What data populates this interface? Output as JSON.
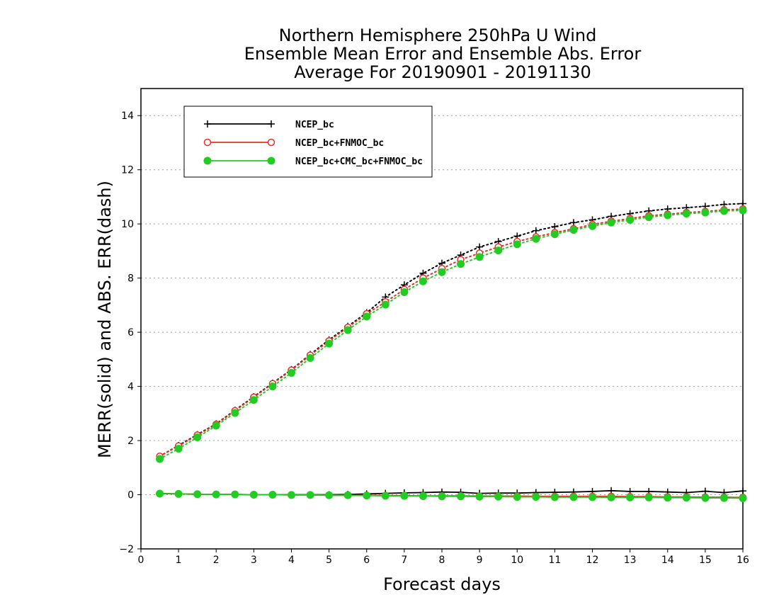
{
  "chart_data": {
    "type": "line",
    "title_lines": [
      "Northern Hemisphere 250hPa U Wind",
      "Ensemble Mean Error and Ensemble Abs. Error",
      "Average For 20190901 - 20191130"
    ],
    "xlabel": "Forecast days",
    "ylabel": "MERR(solid) and ABS. ERR(dash)",
    "xlim": [
      0,
      16
    ],
    "ylim": [
      -2,
      15
    ],
    "xticks": [
      0,
      1,
      2,
      3,
      4,
      5,
      6,
      7,
      8,
      9,
      10,
      11,
      12,
      13,
      14,
      15,
      16
    ],
    "yticks": [
      -2,
      0,
      2,
      4,
      6,
      8,
      10,
      12,
      14
    ],
    "grid": true,
    "legend_position": "top-left",
    "x": [
      0.5,
      1,
      1.5,
      2,
      2.5,
      3,
      3.5,
      4,
      4.5,
      5,
      5.5,
      6,
      6.5,
      7,
      7.5,
      8,
      8.5,
      9,
      9.5,
      10,
      10.5,
      11,
      11.5,
      12,
      12.5,
      13,
      13.5,
      14,
      14.5,
      15,
      15.5,
      16
    ],
    "series": [
      {
        "name": "NCEP_bc",
        "color": "#000000",
        "marker": "plus",
        "merr": [
          0.05,
          0.03,
          0.02,
          0.01,
          0.01,
          0.0,
          0.0,
          0.0,
          0.0,
          0.0,
          0.01,
          0.03,
          0.05,
          0.07,
          0.08,
          0.1,
          0.09,
          0.05,
          0.06,
          0.06,
          0.08,
          0.09,
          0.1,
          0.12,
          0.15,
          0.12,
          0.12,
          0.1,
          0.08,
          0.13,
          0.08,
          0.14
        ],
        "abs": [
          1.42,
          1.82,
          2.22,
          2.62,
          3.12,
          3.62,
          4.12,
          4.62,
          5.18,
          5.72,
          6.22,
          6.72,
          7.3,
          7.75,
          8.18,
          8.55,
          8.85,
          9.15,
          9.35,
          9.55,
          9.75,
          9.9,
          10.05,
          10.15,
          10.28,
          10.38,
          10.48,
          10.55,
          10.6,
          10.65,
          10.72,
          10.75
        ]
      },
      {
        "name": "NCEP_bc+FNMOC_bc",
        "color": "#e8312b",
        "marker": "open-circle",
        "merr": [
          0.04,
          0.03,
          0.02,
          0.01,
          0.01,
          0.0,
          0.0,
          -0.01,
          -0.01,
          -0.02,
          -0.02,
          -0.02,
          -0.03,
          -0.03,
          -0.04,
          -0.04,
          -0.04,
          -0.05,
          -0.05,
          -0.05,
          -0.06,
          -0.06,
          -0.06,
          -0.06,
          -0.06,
          -0.07,
          -0.07,
          -0.08,
          -0.08,
          -0.09,
          -0.09,
          -0.1
        ],
        "abs": [
          1.42,
          1.8,
          2.2,
          2.6,
          3.1,
          3.6,
          4.1,
          4.6,
          5.15,
          5.68,
          6.18,
          6.68,
          7.12,
          7.58,
          8.0,
          8.35,
          8.68,
          8.92,
          9.15,
          9.35,
          9.52,
          9.68,
          9.82,
          9.98,
          10.1,
          10.2,
          10.3,
          10.36,
          10.42,
          10.46,
          10.52,
          10.55
        ]
      },
      {
        "name": "NCEP_bc+CMC_bc+FNMOC_bc",
        "color": "#22cc22",
        "marker": "filled-circle",
        "merr": [
          0.04,
          0.03,
          0.02,
          0.01,
          0.01,
          0.0,
          0.0,
          -0.01,
          -0.01,
          -0.02,
          -0.02,
          -0.03,
          -0.04,
          -0.04,
          -0.05,
          -0.06,
          -0.06,
          -0.07,
          -0.07,
          -0.08,
          -0.08,
          -0.09,
          -0.09,
          -0.09,
          -0.1,
          -0.1,
          -0.1,
          -0.11,
          -0.11,
          -0.12,
          -0.12,
          -0.13
        ],
        "abs": [
          1.32,
          1.7,
          2.12,
          2.55,
          3.02,
          3.5,
          4.0,
          4.5,
          5.05,
          5.58,
          6.08,
          6.58,
          7.02,
          7.48,
          7.88,
          8.22,
          8.52,
          8.78,
          9.02,
          9.25,
          9.45,
          9.62,
          9.78,
          9.92,
          10.05,
          10.15,
          10.25,
          10.32,
          10.38,
          10.42,
          10.48,
          10.5
        ]
      }
    ]
  }
}
